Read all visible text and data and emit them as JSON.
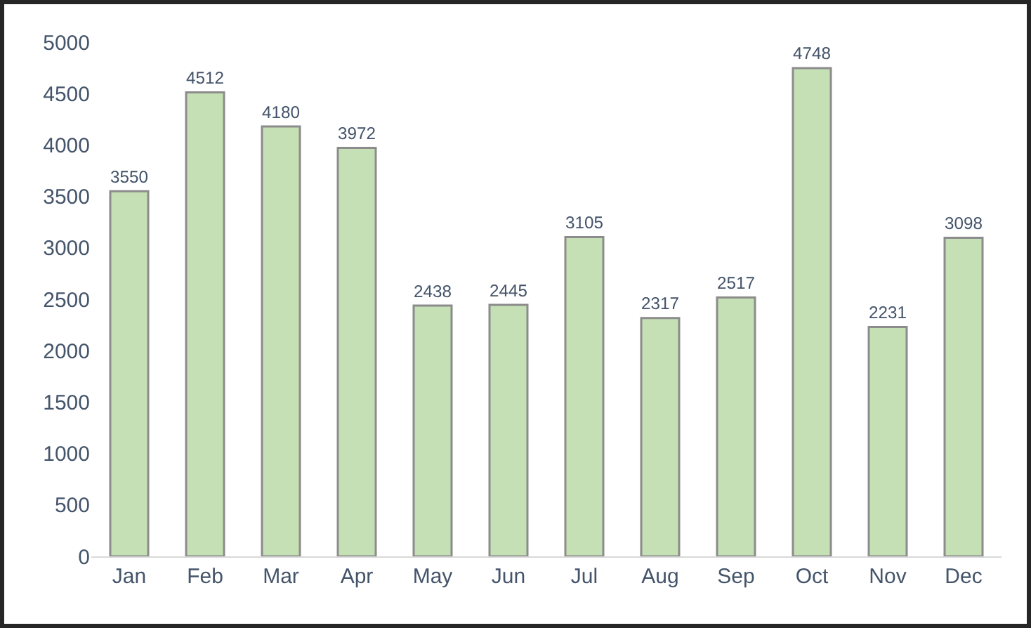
{
  "chart_data": {
    "type": "bar",
    "categories": [
      "Jan",
      "Feb",
      "Mar",
      "Apr",
      "May",
      "Jun",
      "Jul",
      "Aug",
      "Sep",
      "Oct",
      "Nov",
      "Dec"
    ],
    "values": [
      3550,
      4512,
      4180,
      3972,
      2438,
      2445,
      3105,
      2317,
      2517,
      4748,
      2231,
      3098
    ],
    "color": "#c5e0b4",
    "ylim": [
      0,
      5000
    ],
    "yticks": [
      0,
      500,
      1000,
      1500,
      2000,
      2500,
      3000,
      3500,
      4000,
      4500,
      5000
    ],
    "grid": false,
    "data_labels": true
  }
}
